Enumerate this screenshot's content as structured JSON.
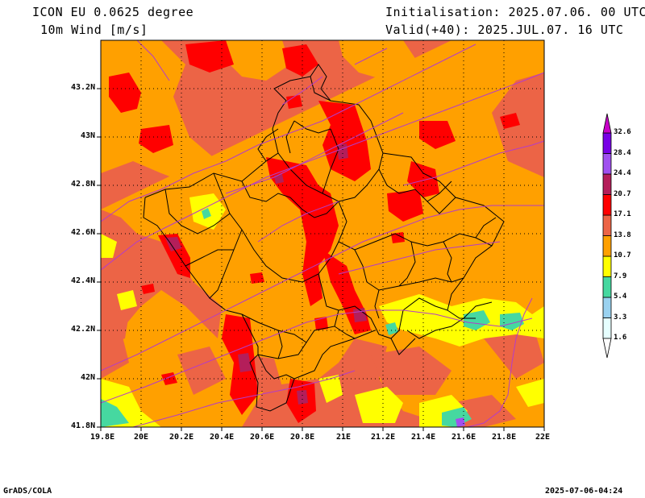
{
  "header": {
    "model": "ICON EU 0.0625 degree",
    "variable": "10m Wind [m/s]",
    "init": "Initialisation: 2025.07.06. 00 UTC",
    "valid": "Valid(+40): 2025.JUL.07. 16 UTC"
  },
  "footer": {
    "left": "GrADS/COLA",
    "right": "2025-07-06-04:24"
  },
  "map": {
    "lon_ticks": [
      "19.8E",
      "20E",
      "20.2E",
      "20.4E",
      "20.6E",
      "20.8E",
      "21E",
      "21.2E",
      "21.4E",
      "21.6E",
      "21.8E",
      "22E"
    ],
    "lat_ticks": [
      "43.2N",
      "43N",
      "42.8N",
      "42.6N",
      "42.4N",
      "42.2N",
      "42N",
      "41.8N"
    ],
    "lon_range": [
      19.8,
      22.0
    ],
    "lat_range": [
      41.8,
      43.4
    ]
  },
  "colorbar": {
    "levels": [
      "1.6",
      "3.3",
      "5.4",
      "7.9",
      "10.7",
      "13.8",
      "17.1",
      "20.7",
      "24.4",
      "28.4",
      "32.6"
    ],
    "colors": [
      "#e6ffff",
      "#9ad2f0",
      "#46d8a0",
      "#ffff00",
      "#ffa000",
      "#ec6446",
      "#ff0000",
      "#b41e5a",
      "#a050f0",
      "#7800e6",
      "#c800c8"
    ]
  }
}
